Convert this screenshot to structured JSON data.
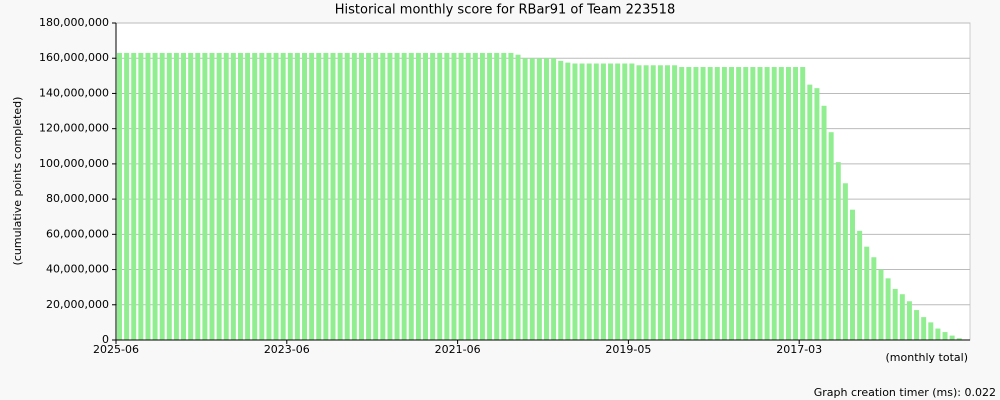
{
  "chart_data": {
    "type": "bar",
    "title": "Historical monthly score for RBar91 of Team 223518",
    "y_label": "(cumulative points completed)",
    "x_label": "(monthly total)",
    "footer": "Graph creation timer (ms): 0.022",
    "color": "#90ee90",
    "grid": true,
    "ylim": [
      0,
      180000000
    ],
    "yticks": [
      0,
      {
        "value": 20000000,
        "label": "20,000,000"
      },
      {
        "value": 40000000,
        "label": "40,000,000"
      },
      {
        "value": 60000000,
        "label": "60,000,000"
      },
      {
        "value": 80000000,
        "label": "80,000,000"
      },
      {
        "value": 100000000,
        "label": "100,000,000"
      },
      {
        "value": 120000000,
        "label": "120,000,000"
      },
      {
        "value": 140000000,
        "label": "140,000,000"
      },
      {
        "value": 160000000,
        "label": "160,000,000"
      },
      {
        "value": 180000000,
        "label": "180,000,000"
      }
    ],
    "categories": [
      "2025-06",
      null,
      null,
      null,
      null,
      null,
      null,
      null,
      null,
      null,
      null,
      null,
      null,
      null,
      null,
      null,
      null,
      null,
      null,
      null,
      null,
      null,
      null,
      null,
      "2023-06",
      null,
      null,
      null,
      null,
      null,
      null,
      null,
      null,
      null,
      null,
      null,
      null,
      null,
      null,
      null,
      null,
      null,
      null,
      null,
      null,
      null,
      null,
      null,
      "2021-06",
      null,
      null,
      null,
      null,
      null,
      null,
      null,
      null,
      null,
      null,
      null,
      null,
      null,
      null,
      null,
      null,
      null,
      null,
      null,
      null,
      null,
      null,
      null,
      "2019-05",
      null,
      null,
      null,
      null,
      null,
      null,
      null,
      null,
      null,
      null,
      null,
      null,
      null,
      null,
      null,
      null,
      null,
      null,
      null,
      null,
      null,
      null,
      null,
      "2017-03",
      null,
      null,
      null,
      null,
      null,
      null,
      null,
      null,
      null,
      null,
      null,
      null,
      null,
      null,
      null,
      null,
      null,
      null,
      null,
      null,
      null,
      null,
      null
    ],
    "values": [
      163000000,
      163000000,
      163000000,
      163000000,
      163000000,
      163000000,
      163000000,
      163000000,
      163000000,
      163000000,
      163000000,
      163000000,
      163000000,
      163000000,
      163000000,
      163000000,
      163000000,
      163000000,
      163000000,
      163000000,
      163000000,
      163000000,
      163000000,
      163000000,
      163000000,
      163000000,
      163000000,
      163000000,
      163000000,
      163000000,
      163000000,
      163000000,
      163000000,
      163000000,
      163000000,
      163000000,
      163000000,
      163000000,
      163000000,
      163000000,
      163000000,
      163000000,
      163000000,
      163000000,
      163000000,
      163000000,
      163000000,
      163000000,
      163000000,
      163000000,
      163000000,
      163000000,
      163000000,
      163000000,
      163000000,
      163000000,
      162000000,
      160000000,
      160000000,
      160000000,
      160000000,
      160000000,
      158500000,
      157500000,
      157000000,
      157000000,
      157000000,
      157000000,
      157000000,
      157000000,
      157000000,
      157000000,
      157000000,
      156000000,
      156000000,
      156000000,
      156000000,
      156000000,
      156000000,
      155000000,
      155000000,
      155000000,
      155000000,
      155000000,
      155000000,
      155000000,
      155000000,
      155000000,
      155000000,
      155000000,
      155000000,
      155000000,
      155000000,
      155000000,
      155000000,
      155000000,
      155000000,
      145000000,
      143000000,
      133000000,
      118000000,
      101000000,
      89000000,
      74000000,
      62000000,
      53000000,
      47000000,
      40000000,
      35000000,
      29000000,
      26000000,
      22000000,
      17000000,
      13000000,
      10000000,
      6500000,
      4500000,
      2500000,
      1000000,
      300000
    ]
  }
}
